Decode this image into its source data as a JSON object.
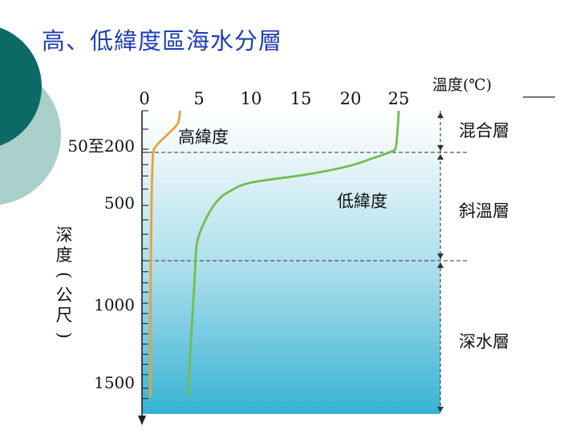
{
  "slide": {
    "title": "高、低緯度區海水分層",
    "theme_colors": {
      "title": "#1f3fb0",
      "circle_dark": "#0c6a66",
      "circle_light": "#a9cfcb"
    }
  },
  "chart_data": {
    "type": "line",
    "x_axis": {
      "label": "溫度(℃)",
      "range": [
        0,
        25
      ],
      "ticks": [
        0,
        5,
        10,
        15,
        20,
        25
      ],
      "position": "top"
    },
    "y_axis": {
      "label": "深度(公尺)",
      "direction": "down",
      "tick_labels": [
        {
          "value": 125,
          "label": "50至200"
        },
        {
          "value": 500,
          "label": "500"
        },
        {
          "value": 1000,
          "label": "1000"
        },
        {
          "value": 1500,
          "label": "1500"
        }
      ]
    },
    "series": [
      {
        "name": "高緯度",
        "color": "#e8a03a",
        "points": [
          [
            3.5,
            0
          ],
          [
            3.3,
            40
          ],
          [
            2.5,
            70
          ],
          [
            1.4,
            105
          ],
          [
            0.9,
            150
          ],
          [
            0.8,
            250
          ],
          [
            0.7,
            500
          ],
          [
            0.6,
            1000
          ],
          [
            0.6,
            1550
          ]
        ]
      },
      {
        "name": "低緯度",
        "color": "#73bd4e",
        "points": [
          [
            25,
            0
          ],
          [
            24.9,
            60
          ],
          [
            24.7,
            120
          ],
          [
            24.3,
            160
          ],
          [
            22.5,
            210
          ],
          [
            20,
            260
          ],
          [
            16,
            310
          ],
          [
            10.5,
            360
          ],
          [
            8.5,
            410
          ],
          [
            7.2,
            470
          ],
          [
            6,
            560
          ],
          [
            5.2,
            650
          ],
          [
            5,
            760
          ],
          [
            4.9,
            900
          ],
          [
            4.8,
            1000
          ],
          [
            4.6,
            1200
          ],
          [
            4.4,
            1400
          ],
          [
            4.3,
            1550
          ]
        ]
      }
    ],
    "layers": [
      {
        "name": "混合層",
        "from": 0,
        "to": 175
      },
      {
        "name": "斜溫層",
        "from": 175,
        "to": 730
      },
      {
        "name": "深水層",
        "from": 730,
        "to": 1650
      }
    ],
    "boundaries": [
      175,
      730
    ],
    "grid": false,
    "legend": "none"
  }
}
